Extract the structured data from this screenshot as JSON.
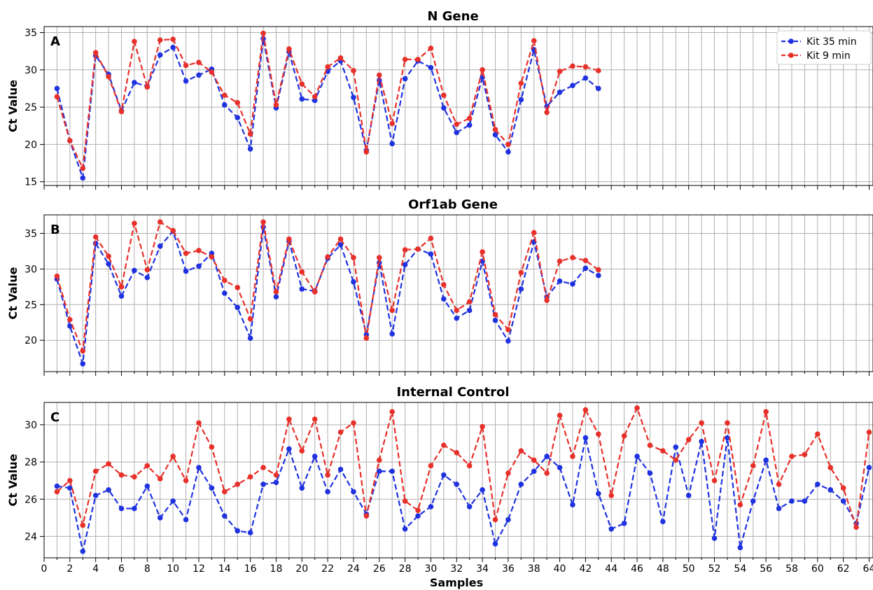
{
  "chart_data": [
    {
      "type": "line",
      "title": "N Gene",
      "panel_label": "A",
      "ylabel": "Ct Value",
      "xlabel": "",
      "xlim": [
        0,
        64.3
      ],
      "ylim": [
        14.5,
        35.8
      ],
      "yticks": [
        15,
        20,
        25,
        30,
        35
      ],
      "grid": true,
      "legend": "top-right",
      "series": [
        {
          "name": "Kit 35 min",
          "color": "#1f32e0",
          "x": [
            1,
            2,
            3,
            4,
            5,
            6,
            7,
            8,
            9,
            10,
            11,
            12,
            13,
            14,
            15,
            16,
            17,
            18,
            19,
            20,
            21,
            22,
            23,
            24,
            25,
            26,
            27,
            28,
            29,
            30,
            31,
            32,
            33,
            34,
            35,
            36,
            37,
            38,
            39,
            40,
            41,
            42,
            43
          ],
          "values": [
            27.5,
            20.5,
            15.5,
            31.9,
            29.4,
            24.5,
            28.3,
            27.8,
            32.0,
            33.0,
            28.5,
            29.3,
            30.1,
            25.3,
            23.6,
            19.4,
            34.2,
            24.9,
            32.4,
            26.1,
            25.9,
            29.8,
            31.2,
            26.3,
            19.2,
            28.6,
            20.1,
            28.8,
            31.2,
            30.3,
            24.9,
            21.6,
            22.6,
            29.0,
            21.3,
            19.0,
            26.0,
            32.7,
            25.1,
            27.0,
            27.9,
            28.9,
            27.5
          ]
        },
        {
          "name": "Kit 9 min",
          "color": "#e8302a",
          "x": [
            1,
            2,
            3,
            4,
            5,
            6,
            7,
            8,
            9,
            10,
            11,
            12,
            13,
            14,
            15,
            16,
            17,
            18,
            19,
            20,
            21,
            22,
            23,
            24,
            25,
            26,
            27,
            28,
            29,
            30,
            31,
            32,
            33,
            34,
            35,
            36,
            37,
            38,
            39,
            40,
            41,
            42,
            43
          ],
          "values": [
            26.4,
            20.5,
            16.8,
            32.3,
            29.1,
            24.4,
            33.8,
            27.7,
            34.0,
            34.1,
            30.6,
            31.0,
            29.7,
            26.6,
            25.6,
            21.4,
            34.9,
            25.3,
            32.8,
            28.1,
            26.4,
            30.4,
            31.6,
            29.9,
            19.0,
            29.3,
            22.8,
            31.4,
            31.4,
            32.9,
            26.6,
            22.7,
            23.5,
            30.0,
            22.0,
            20.0,
            28.2,
            33.9,
            24.3,
            29.8,
            30.5,
            30.4,
            29.9
          ]
        }
      ]
    },
    {
      "type": "line",
      "title": "Orf1ab Gene",
      "panel_label": "B",
      "ylabel": "Ct Value",
      "xlabel": "",
      "xlim": [
        0,
        64.3
      ],
      "ylim": [
        15.6,
        37.6
      ],
      "yticks": [
        20,
        25,
        30,
        35
      ],
      "grid": true,
      "series": [
        {
          "name": "Kit 35 min",
          "color": "#1f32e0",
          "x": [
            1,
            2,
            3,
            4,
            5,
            6,
            7,
            8,
            9,
            10,
            11,
            12,
            13,
            14,
            15,
            16,
            17,
            18,
            19,
            20,
            21,
            22,
            23,
            24,
            25,
            26,
            27,
            28,
            29,
            30,
            31,
            32,
            33,
            34,
            35,
            36,
            37,
            38,
            39,
            40,
            41,
            42,
            43
          ],
          "values": [
            28.6,
            22.0,
            16.7,
            33.6,
            30.7,
            26.2,
            29.8,
            28.8,
            33.2,
            35.3,
            29.7,
            30.4,
            32.2,
            26.6,
            24.6,
            20.3,
            35.9,
            26.1,
            33.9,
            27.2,
            26.9,
            31.5,
            33.4,
            28.2,
            20.8,
            30.9,
            20.9,
            30.6,
            32.8,
            32.1,
            25.8,
            23.1,
            24.2,
            31.1,
            22.8,
            19.9,
            27.2,
            33.8,
            26.1,
            28.3,
            27.9,
            30.1,
            29.1
          ]
        },
        {
          "name": "Kit 9 min",
          "color": "#e8302a",
          "x": [
            1,
            2,
            3,
            4,
            5,
            6,
            7,
            8,
            9,
            10,
            11,
            12,
            13,
            14,
            15,
            16,
            17,
            18,
            19,
            20,
            21,
            22,
            23,
            24,
            25,
            26,
            27,
            28,
            29,
            30,
            31,
            32,
            33,
            34,
            35,
            36,
            37,
            38,
            39,
            40,
            41,
            42,
            43
          ],
          "values": [
            29.0,
            22.9,
            18.5,
            34.5,
            31.8,
            27.5,
            36.4,
            29.9,
            36.6,
            35.4,
            32.2,
            32.6,
            31.7,
            28.4,
            27.4,
            23.0,
            36.6,
            26.8,
            34.2,
            29.6,
            26.8,
            31.7,
            34.2,
            31.6,
            20.3,
            31.6,
            24.2,
            32.7,
            32.8,
            34.3,
            27.8,
            24.2,
            25.4,
            32.4,
            23.6,
            21.5,
            29.5,
            35.1,
            25.6,
            31.1,
            31.6,
            31.2,
            29.9
          ]
        }
      ]
    },
    {
      "type": "line",
      "title": "Internal Control",
      "panel_label": "C",
      "ylabel": "Ct Value",
      "xlabel": "Samples",
      "xlim": [
        0,
        64.3
      ],
      "ylim": [
        22.85,
        31.2
      ],
      "yticks": [
        24,
        26,
        28,
        30
      ],
      "xticks": [
        0,
        2,
        4,
        6,
        8,
        10,
        12,
        14,
        16,
        18,
        20,
        22,
        24,
        26,
        28,
        30,
        32,
        34,
        36,
        38,
        40,
        42,
        44,
        46,
        48,
        50,
        52,
        54,
        56,
        58,
        60,
        62,
        64
      ],
      "grid": true,
      "series": [
        {
          "name": "Kit 35 min",
          "color": "#1f32e0",
          "x": [
            1,
            2,
            3,
            4,
            5,
            6,
            7,
            8,
            9,
            10,
            11,
            12,
            13,
            14,
            15,
            16,
            17,
            18,
            19,
            20,
            21,
            22,
            23,
            24,
            25,
            26,
            27,
            28,
            29,
            30,
            31,
            32,
            33,
            34,
            35,
            36,
            37,
            38,
            39,
            40,
            41,
            42,
            43,
            44,
            45,
            46,
            47,
            48,
            49,
            50,
            51,
            52,
            53,
            54,
            55,
            56,
            57,
            58,
            59,
            60,
            61,
            62,
            63,
            64
          ],
          "values": [
            26.7,
            26.6,
            23.2,
            26.2,
            26.5,
            25.5,
            25.5,
            26.7,
            25.0,
            25.9,
            24.9,
            27.7,
            26.6,
            25.1,
            24.3,
            24.2,
            26.8,
            26.9,
            28.7,
            26.6,
            28.3,
            26.4,
            27.6,
            26.4,
            25.2,
            27.5,
            27.5,
            24.4,
            25.1,
            25.6,
            27.3,
            26.8,
            25.6,
            26.5,
            23.6,
            24.9,
            26.8,
            27.5,
            28.3,
            27.7,
            25.7,
            29.3,
            26.3,
            24.4,
            24.7,
            28.3,
            27.4,
            24.8,
            28.8,
            26.2,
            29.1,
            23.9,
            29.3,
            23.4,
            25.9,
            28.1,
            25.5,
            25.9,
            25.9,
            26.8,
            26.5,
            25.9,
            24.7,
            27.7
          ]
        },
        {
          "name": "Kit 9 min",
          "color": "#e8302a",
          "x": [
            1,
            2,
            3,
            4,
            5,
            6,
            7,
            8,
            9,
            10,
            11,
            12,
            13,
            14,
            15,
            16,
            17,
            18,
            19,
            20,
            21,
            22,
            23,
            24,
            25,
            26,
            27,
            28,
            29,
            30,
            31,
            32,
            33,
            34,
            35,
            36,
            37,
            38,
            39,
            40,
            41,
            42,
            43,
            44,
            45,
            46,
            47,
            48,
            49,
            50,
            51,
            52,
            53,
            54,
            55,
            56,
            57,
            58,
            59,
            60,
            61,
            62,
            63,
            64
          ],
          "values": [
            26.4,
            27.0,
            24.6,
            27.5,
            27.9,
            27.3,
            27.2,
            27.8,
            27.1,
            28.3,
            27.0,
            30.1,
            28.8,
            26.4,
            26.8,
            27.2,
            27.7,
            27.3,
            30.3,
            28.6,
            30.3,
            27.3,
            29.6,
            30.1,
            25.1,
            28.1,
            30.7,
            25.9,
            25.4,
            27.8,
            28.9,
            28.5,
            27.8,
            29.9,
            24.9,
            27.4,
            28.6,
            28.1,
            27.4,
            30.5,
            28.3,
            30.8,
            29.5,
            26.2,
            29.4,
            30.9,
            28.9,
            28.6,
            28.1,
            29.2,
            30.1,
            27.0,
            30.1,
            25.7,
            27.8,
            30.7,
            26.8,
            28.3,
            28.4,
            29.5,
            27.7,
            26.6,
            24.5,
            29.6
          ]
        }
      ]
    }
  ]
}
